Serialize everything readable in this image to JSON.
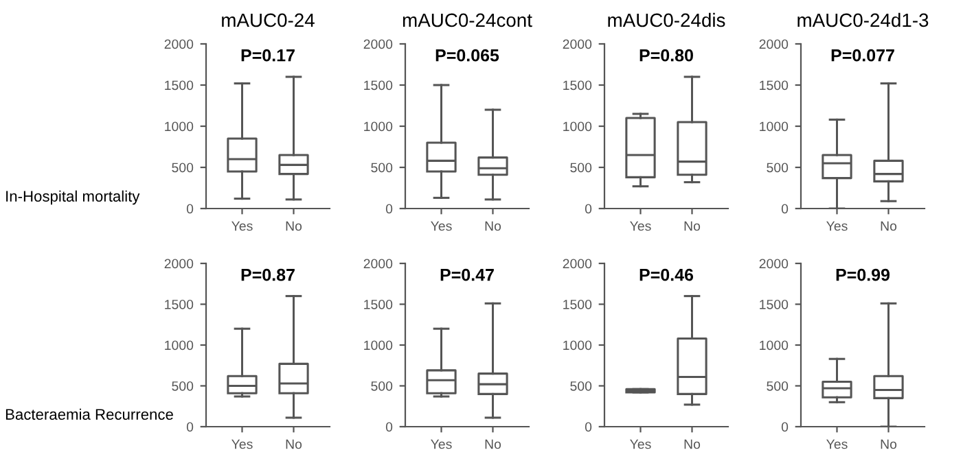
{
  "chart_data": [
    {
      "type": "box",
      "title": "mAUC0-24",
      "categories": [
        "Yes",
        "No"
      ],
      "ylim": [
        0,
        2000
      ],
      "yticks": [
        0,
        500,
        1000,
        1500,
        2000
      ],
      "annotations": [
        "P=0.17",
        "In-Hospital mortality"
      ],
      "boxes": [
        {
          "low": 120,
          "q1": 450,
          "median": 600,
          "q3": 850,
          "high": 1520
        },
        {
          "low": 110,
          "q1": 420,
          "median": 530,
          "q3": 650,
          "high": 1600
        }
      ]
    },
    {
      "type": "box",
      "title": "mAUC0-24cont",
      "categories": [
        "Yes",
        "No"
      ],
      "ylim": [
        0,
        2000
      ],
      "yticks": [
        0,
        500,
        1000,
        1500,
        2000
      ],
      "annotations": [
        "P=0.065"
      ],
      "boxes": [
        {
          "low": 130,
          "q1": 450,
          "median": 580,
          "q3": 800,
          "high": 1500
        },
        {
          "low": 110,
          "q1": 410,
          "median": 490,
          "q3": 620,
          "high": 1200
        }
      ]
    },
    {
      "type": "box",
      "title": "mAUC0-24dis",
      "categories": [
        "Yes",
        "No"
      ],
      "ylim": [
        0,
        2000
      ],
      "yticks": [
        0,
        500,
        1000,
        1500,
        2000
      ],
      "annotations": [
        "P=0.80"
      ],
      "boxes": [
        {
          "low": 270,
          "q1": 380,
          "median": 650,
          "q3": 1100,
          "high": 1150
        },
        {
          "low": 320,
          "q1": 410,
          "median": 570,
          "q3": 1050,
          "high": 1600
        }
      ]
    },
    {
      "type": "box",
      "title": "mAUC0-24d1-3",
      "categories": [
        "Yes",
        "No"
      ],
      "ylim": [
        0,
        2000
      ],
      "yticks": [
        0,
        500,
        1000,
        1500,
        2000
      ],
      "annotations": [
        "P=0.077"
      ],
      "boxes": [
        {
          "low": 0,
          "q1": 370,
          "median": 550,
          "q3": 650,
          "high": 1080
        },
        {
          "low": 90,
          "q1": 330,
          "median": 420,
          "q3": 580,
          "high": 1520
        }
      ]
    },
    {
      "type": "box",
      "categories": [
        "Yes",
        "No"
      ],
      "ylim": [
        0,
        2000
      ],
      "yticks": [
        0,
        500,
        1000,
        1500,
        2000
      ],
      "annotations": [
        "P=0.87",
        "Bacteraemia Recurrence"
      ],
      "boxes": [
        {
          "low": 370,
          "q1": 410,
          "median": 500,
          "q3": 620,
          "high": 1200
        },
        {
          "low": 110,
          "q1": 410,
          "median": 530,
          "q3": 770,
          "high": 1600
        }
      ]
    },
    {
      "type": "box",
      "categories": [
        "Yes",
        "No"
      ],
      "ylim": [
        0,
        2000
      ],
      "yticks": [
        0,
        500,
        1000,
        1500,
        2000
      ],
      "annotations": [
        "P=0.47"
      ],
      "boxes": [
        {
          "low": 370,
          "q1": 410,
          "median": 570,
          "q3": 690,
          "high": 1200
        },
        {
          "low": 110,
          "q1": 400,
          "median": 520,
          "q3": 650,
          "high": 1510
        }
      ]
    },
    {
      "type": "box",
      "categories": [
        "Yes",
        "No"
      ],
      "ylim": [
        0,
        2000
      ],
      "yticks": [
        0,
        500,
        1000,
        1500,
        2000
      ],
      "annotations": [
        "P=0.46"
      ],
      "boxes": [
        {
          "low": 420,
          "q1": 420,
          "median": 440,
          "q3": 460,
          "high": 460
        },
        {
          "low": 270,
          "q1": 400,
          "median": 610,
          "q3": 1080,
          "high": 1600
        }
      ]
    },
    {
      "type": "box",
      "categories": [
        "Yes",
        "No"
      ],
      "ylim": [
        0,
        2000
      ],
      "yticks": [
        0,
        500,
        1000,
        1500,
        2000
      ],
      "annotations": [
        "P=0.99"
      ],
      "boxes": [
        {
          "low": 300,
          "q1": 360,
          "median": 470,
          "q3": 550,
          "high": 830
        },
        {
          "low": 0,
          "q1": 350,
          "median": 450,
          "q3": 620,
          "high": 1510
        }
      ]
    }
  ]
}
